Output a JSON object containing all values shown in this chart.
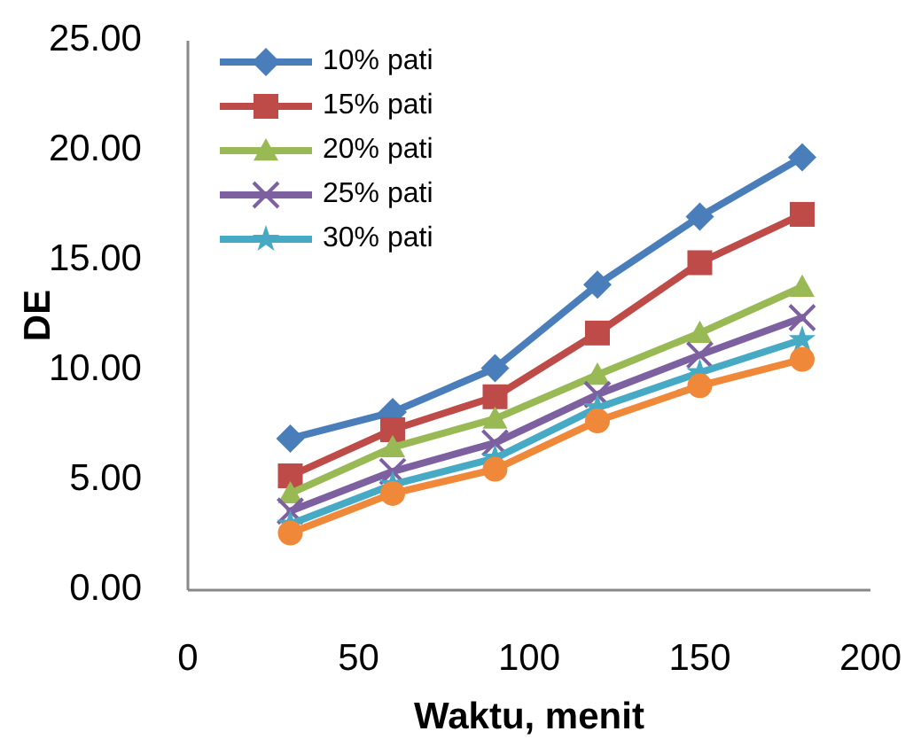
{
  "chart_data": {
    "type": "line",
    "xlabel": "Waktu, menit",
    "ylabel": "DE",
    "x": [
      30,
      60,
      90,
      120,
      150,
      180
    ],
    "xlim": [
      0,
      200
    ],
    "xticks": [
      0,
      50,
      100,
      150,
      200
    ],
    "ylim": [
      0,
      25
    ],
    "yticks": [
      {
        "value": 0,
        "label": "0.00"
      },
      {
        "value": 5,
        "label": "5.00"
      },
      {
        "value": 10,
        "label": "10.00"
      },
      {
        "value": 15,
        "label": "15.00"
      },
      {
        "value": 20,
        "label": "20.00"
      },
      {
        "value": 25,
        "label": "25.00"
      }
    ],
    "grid": false,
    "legend": "top left",
    "line_style": "solid",
    "series": [
      {
        "name": "10% pati",
        "color": "#4a7ebb",
        "marker": "diamond",
        "values": [
          6.9,
          8.1,
          10.1,
          13.9,
          17.0,
          19.7
        ]
      },
      {
        "name": "15% pati",
        "color": "#be4b48",
        "marker": "square",
        "values": [
          5.2,
          7.3,
          8.8,
          11.7,
          14.9,
          17.1
        ]
      },
      {
        "name": "20% pati",
        "color": "#98b954",
        "marker": "triangle",
        "values": [
          4.4,
          6.5,
          7.8,
          9.8,
          11.7,
          13.8
        ]
      },
      {
        "name": "25% pati",
        "color": "#7d60a0",
        "marker": "cross",
        "values": [
          3.6,
          5.4,
          6.7,
          8.9,
          10.7,
          12.4
        ]
      },
      {
        "name": "30% pati",
        "color": "#46aac5",
        "marker": "star",
        "values": [
          3.0,
          4.8,
          6.0,
          8.3,
          9.9,
          11.4
        ]
      },
      {
        "color": "#f0883a",
        "marker": "circle",
        "values": [
          2.6,
          4.4,
          5.5,
          7.7,
          9.3,
          10.5
        ]
      }
    ]
  }
}
